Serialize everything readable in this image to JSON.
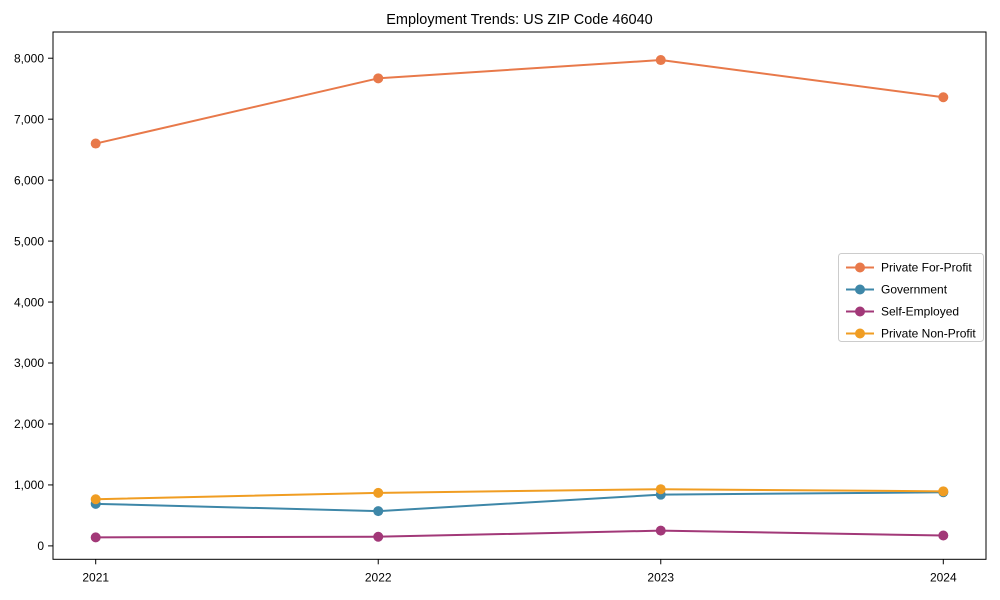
{
  "figure": {
    "background": "#ffffff",
    "axis_color": "#000000",
    "text_color": "#000000"
  },
  "chart_data": {
    "type": "line",
    "title": "Employment Trends: US ZIP Code 46040",
    "xlabel": "",
    "ylabel": "",
    "categories": [
      "2021",
      "2022",
      "2023",
      "2024"
    ],
    "series": [
      {
        "name": "Private For-Profit",
        "color": "#E8794A",
        "values": [
          6600,
          7670,
          7970,
          7360
        ]
      },
      {
        "name": "Government",
        "color": "#3E87A8",
        "values": [
          690,
          570,
          840,
          880
        ]
      },
      {
        "name": "Self-Employed",
        "color": "#A23878",
        "values": [
          140,
          150,
          250,
          170
        ]
      },
      {
        "name": "Private Non-Profit",
        "color": "#F09D22",
        "values": [
          765,
          870,
          930,
          895
        ]
      }
    ],
    "yticks": [
      0,
      1000,
      2000,
      3000,
      4000,
      5000,
      6000,
      7000,
      8000
    ],
    "ytick_labels": [
      "0",
      "1,000",
      "2,000",
      "3,000",
      "4,000",
      "5,000",
      "6,000",
      "7,000",
      "8,000"
    ],
    "ylim": [
      -220,
      8430
    ],
    "grid": false,
    "legend": {
      "position": "center-right",
      "border_color": "#cccccc",
      "background": "#ffffff",
      "entries": [
        "Private For-Profit",
        "Government",
        "Self-Employed",
        "Private Non-Profit"
      ]
    }
  }
}
